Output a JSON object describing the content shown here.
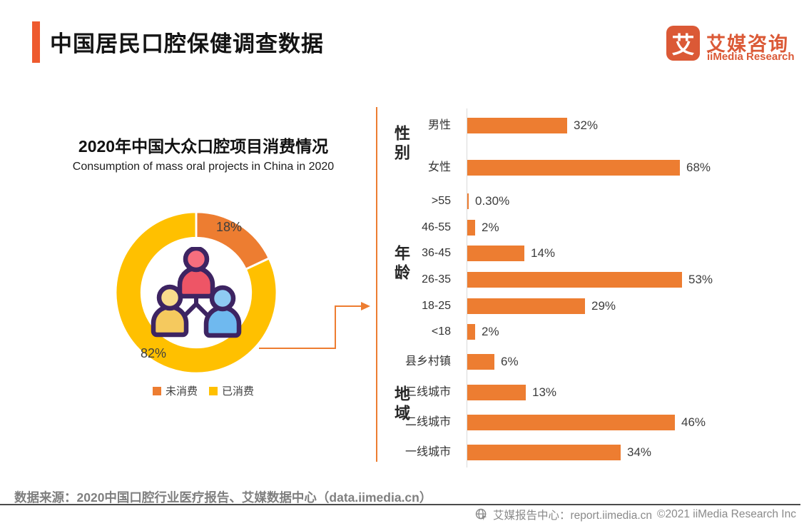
{
  "header": {
    "title": "中国居民口腔保健调查数据"
  },
  "brand": {
    "logo_char": "艾",
    "name_zh": "艾媒咨询",
    "name_en": "iiMedia Research"
  },
  "colors": {
    "accent_orange": "#EE5A2E",
    "logo_orange": "#DB5936",
    "bar_orange": "#ED7D31",
    "gold_yellow": "#FFC000",
    "axis_gray": "#D9D9D9",
    "source_gray": "#7F7F7F"
  },
  "donut_chart": {
    "title_zh": "2020年中国大众口腔项目消费情况",
    "title_en": "Consumption of mass oral projects in China in 2020",
    "slice_labels": [
      "18%",
      "82%"
    ],
    "legend": [
      {
        "label": "未消费",
        "color": "#ED7D31"
      },
      {
        "label": "已消费",
        "color": "#FFC000"
      }
    ]
  },
  "chart_data": [
    {
      "type": "pie",
      "donut": true,
      "title": "2020年中国大众口腔项目消费情况",
      "subtitle": "Consumption of mass oral projects in China in 2020",
      "labels": [
        "未消费",
        "已消费"
      ],
      "values": [
        18,
        82
      ],
      "value_labels": [
        "18%",
        "82%"
      ],
      "colors": [
        "#ED7D31",
        "#FFC000"
      ],
      "start_angle_deg": 0,
      "direction": "clockwise",
      "legend_position": "bottom"
    },
    {
      "type": "bar",
      "orientation": "horizontal",
      "bar_color": "#ED7D31",
      "value_suffix": "%",
      "scaling": "each group scaled independently to its own maximum",
      "groups": [
        {
          "name": "性别",
          "categories": [
            "男性",
            "女性"
          ],
          "values": [
            32,
            68
          ],
          "value_labels": [
            "32%",
            "68%"
          ]
        },
        {
          "name": "年龄",
          "categories": [
            ">55",
            "46-55",
            "36-45",
            "26-35",
            "18-25",
            "<18"
          ],
          "values": [
            0.3,
            2,
            14,
            53,
            29,
            2
          ],
          "value_labels": [
            "0.30%",
            "2%",
            "14%",
            "53%",
            "29%",
            "2%"
          ]
        },
        {
          "name": "地域",
          "categories": [
            "县乡村镇",
            "三线城市",
            "二线城市",
            "一线城市"
          ],
          "values": [
            6,
            13,
            46,
            34
          ],
          "value_labels": [
            "6%",
            "13%",
            "46%",
            "34%"
          ]
        }
      ]
    }
  ],
  "source_line": "数据来源：2020中国口腔行业医疗报告、艾媒数据中心（data.iimedia.cn）",
  "footer": {
    "report_center": "艾媒报告中心：report.iimedia.cn",
    "copyright": "©2021  iiMedia Research  Inc"
  }
}
